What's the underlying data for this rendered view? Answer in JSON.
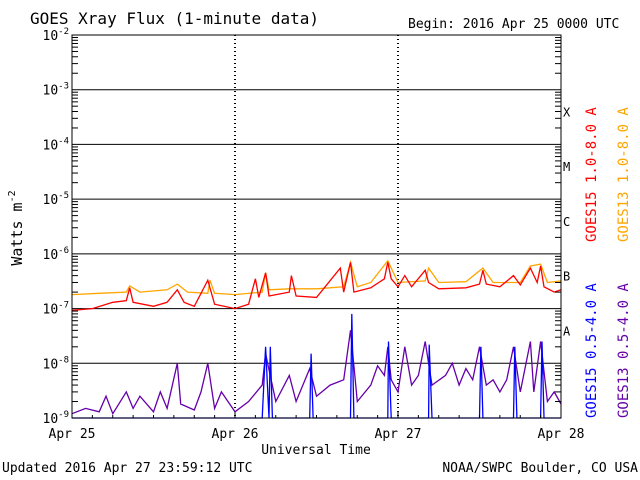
{
  "chart_data": {
    "type": "line",
    "title": "GOES Xray Flux (1-minute data)",
    "begin_label": "Begin:  2016 Apr 25 0000 UTC",
    "xlabel": "Universal Time",
    "ylabel": "Watts m",
    "ylabel_sup": "-2",
    "y_scale": "log",
    "ylim": [
      1e-09,
      0.01
    ],
    "x_unit": "hours since 2016 Apr 25 0000 UTC",
    "xlim": [
      0,
      72
    ],
    "x_ticks": [
      {
        "x": 0,
        "label": "Apr 25"
      },
      {
        "x": 24,
        "label": "Apr 26"
      },
      {
        "x": 48,
        "label": "Apr 27"
      },
      {
        "x": 72,
        "label": "Apr 28"
      }
    ],
    "y_ticks": [
      {
        "exp": "-2",
        "value": 0.01
      },
      {
        "exp": "-3",
        "value": 0.001
      },
      {
        "exp": "-4",
        "value": 0.0001
      },
      {
        "exp": "-5",
        "value": 1e-05
      },
      {
        "exp": "-6",
        "value": 1e-06
      },
      {
        "exp": "-7",
        "value": 1e-07
      },
      {
        "exp": "-8",
        "value": 1e-08
      },
      {
        "exp": "-9",
        "value": 1e-09
      }
    ],
    "flare_classes": [
      {
        "label": "X",
        "value": 0.0001
      },
      {
        "label": "M",
        "value": 1e-05
      },
      {
        "label": "C",
        "value": 1e-06
      },
      {
        "label": "B",
        "value": 1e-07
      },
      {
        "label": "A",
        "value": 1e-08
      }
    ],
    "grid": "horizontal at each decade from 1e-3 to 1e-8, dashed vertical at day boundaries",
    "legend_position": "right, vertical",
    "series": [
      {
        "name": "GOES15 1.0-8.0 A",
        "color": "#ff0000",
        "points": [
          [
            0,
            9.3e-08
          ],
          [
            3,
            1e-07
          ],
          [
            6,
            1.3e-07
          ],
          [
            8,
            1.4e-07
          ],
          [
            8.5,
            2.4e-07
          ],
          [
            9,
            1.3e-07
          ],
          [
            12,
            1.1e-07
          ],
          [
            14,
            1.3e-07
          ],
          [
            15.5,
            2.2e-07
          ],
          [
            16.5,
            1.3e-07
          ],
          [
            18,
            1.1e-07
          ],
          [
            20,
            3.3e-07
          ],
          [
            21,
            1.2e-07
          ],
          [
            24,
            1e-07
          ],
          [
            26,
            1.2e-07
          ],
          [
            27,
            3.5e-07
          ],
          [
            27.5,
            1.6e-07
          ],
          [
            28.5,
            4.5e-07
          ],
          [
            29,
            1.7e-07
          ],
          [
            32,
            2e-07
          ],
          [
            32.3,
            4e-07
          ],
          [
            33,
            1.7e-07
          ],
          [
            36,
            1.6e-07
          ],
          [
            39.5,
            5.5e-07
          ],
          [
            40,
            2e-07
          ],
          [
            41,
            7e-07
          ],
          [
            41.5,
            2e-07
          ],
          [
            44,
            2.4e-07
          ],
          [
            46,
            3.5e-07
          ],
          [
            46.5,
            7e-07
          ],
          [
            47,
            3.5e-07
          ],
          [
            48,
            2.5e-07
          ],
          [
            49,
            4e-07
          ],
          [
            50,
            2.5e-07
          ],
          [
            52,
            5e-07
          ],
          [
            52.5,
            3e-07
          ],
          [
            54,
            2.3e-07
          ],
          [
            58,
            2.4e-07
          ],
          [
            60,
            2.8e-07
          ],
          [
            60.5,
            5e-07
          ],
          [
            61,
            2.8e-07
          ],
          [
            63,
            2.5e-07
          ],
          [
            65,
            4e-07
          ],
          [
            66,
            2.7e-07
          ],
          [
            67.5,
            5.5e-07
          ],
          [
            68.5,
            3e-07
          ],
          [
            69,
            6e-07
          ],
          [
            69.5,
            2.5e-07
          ],
          [
            71,
            2e-07
          ],
          [
            72,
            2.2e-07
          ]
        ]
      },
      {
        "name": "GOES13 1.0-8.0 A",
        "color": "#ffa500",
        "points": [
          [
            0,
            1.8e-07
          ],
          [
            4,
            1.9e-07
          ],
          [
            8,
            2e-07
          ],
          [
            8.5,
            2.6e-07
          ],
          [
            10,
            2e-07
          ],
          [
            14,
            2.2e-07
          ],
          [
            15.5,
            2.8e-07
          ],
          [
            17,
            2e-07
          ],
          [
            20,
            1.9e-07
          ],
          [
            20.3,
            3.3e-07
          ],
          [
            21,
            1.9e-07
          ],
          [
            24,
            1.8e-07
          ],
          [
            28,
            2e-07
          ],
          [
            28.5,
            4.5e-07
          ],
          [
            29,
            2.2e-07
          ],
          [
            32,
            2.3e-07
          ],
          [
            36,
            2.3e-07
          ],
          [
            40,
            2.5e-07
          ],
          [
            41,
            7e-07
          ],
          [
            42,
            2.5e-07
          ],
          [
            44,
            3e-07
          ],
          [
            46.5,
            7.5e-07
          ],
          [
            48,
            3e-07
          ],
          [
            52,
            3.2e-07
          ],
          [
            52.5,
            5.5e-07
          ],
          [
            54,
            3e-07
          ],
          [
            58,
            3.1e-07
          ],
          [
            60.5,
            5.5e-07
          ],
          [
            62,
            3e-07
          ],
          [
            66,
            3e-07
          ],
          [
            67.5,
            6e-07
          ],
          [
            69,
            6.5e-07
          ],
          [
            70,
            3e-07
          ],
          [
            72,
            3.2e-07
          ]
        ]
      },
      {
        "name": "GOES15 0.5-4.0 A",
        "color": "#0000ff",
        "points": [
          [
            0,
            1e-09
          ],
          [
            28,
            1e-09
          ],
          [
            28.5,
            2e-08
          ],
          [
            29,
            1e-09
          ],
          [
            29.2,
            2e-08
          ],
          [
            29.5,
            1e-09
          ],
          [
            35,
            1e-09
          ],
          [
            35.2,
            1.5e-08
          ],
          [
            35.5,
            1e-09
          ],
          [
            41,
            1e-09
          ],
          [
            41.2,
            8e-08
          ],
          [
            41.5,
            1e-09
          ],
          [
            46.5,
            1e-09
          ],
          [
            46.6,
            2.5e-08
          ],
          [
            47,
            1e-09
          ],
          [
            52.5,
            1e-09
          ],
          [
            52.6,
            2.2e-08
          ],
          [
            53,
            1e-09
          ],
          [
            60,
            1e-09
          ],
          [
            60.2,
            2e-08
          ],
          [
            60.5,
            1e-09
          ],
          [
            65,
            1e-09
          ],
          [
            65.2,
            2e-08
          ],
          [
            65.5,
            1e-09
          ],
          [
            69,
            1e-09
          ],
          [
            69.2,
            2.5e-08
          ],
          [
            69.5,
            1e-09
          ],
          [
            72,
            1e-09
          ]
        ]
      },
      {
        "name": "GOES13 0.5-4.0 A",
        "color": "#6600aa",
        "points": [
          [
            0,
            1.2e-09
          ],
          [
            2,
            1.5e-09
          ],
          [
            4,
            1.3e-09
          ],
          [
            5,
            2.5e-09
          ],
          [
            6,
            1.2e-09
          ],
          [
            8,
            3e-09
          ],
          [
            9,
            1.5e-09
          ],
          [
            10,
            2.5e-09
          ],
          [
            12,
            1.3e-09
          ],
          [
            13,
            3e-09
          ],
          [
            14,
            1.5e-09
          ],
          [
            15.5,
            1e-08
          ],
          [
            16,
            1.8e-09
          ],
          [
            18,
            1.4e-09
          ],
          [
            19,
            3e-09
          ],
          [
            20,
            1e-08
          ],
          [
            21,
            1.5e-09
          ],
          [
            22,
            3e-09
          ],
          [
            24,
            1.3e-09
          ],
          [
            26,
            2e-09
          ],
          [
            28,
            4e-09
          ],
          [
            28.5,
            1.5e-08
          ],
          [
            30,
            2e-09
          ],
          [
            32,
            6e-09
          ],
          [
            33,
            2e-09
          ],
          [
            35,
            8e-09
          ],
          [
            36,
            2.5e-09
          ],
          [
            38,
            4e-09
          ],
          [
            40,
            5e-09
          ],
          [
            41,
            4e-08
          ],
          [
            42,
            2e-09
          ],
          [
            44,
            4e-09
          ],
          [
            45,
            9e-09
          ],
          [
            46,
            6e-09
          ],
          [
            46.5,
            2e-08
          ],
          [
            47,
            5e-09
          ],
          [
            48,
            3e-09
          ],
          [
            49,
            2e-08
          ],
          [
            50,
            4e-09
          ],
          [
            51,
            6e-09
          ],
          [
            52,
            2.5e-08
          ],
          [
            53,
            4e-09
          ],
          [
            55,
            6e-09
          ],
          [
            56,
            1e-08
          ],
          [
            57,
            4e-09
          ],
          [
            58,
            8e-09
          ],
          [
            59,
            5e-09
          ],
          [
            60,
            2e-08
          ],
          [
            61,
            4e-09
          ],
          [
            62,
            5e-09
          ],
          [
            63,
            3e-09
          ],
          [
            64,
            5e-09
          ],
          [
            65,
            2e-08
          ],
          [
            66,
            3e-09
          ],
          [
            67.5,
            2.5e-08
          ],
          [
            68,
            3e-09
          ],
          [
            69,
            2.5e-08
          ],
          [
            70,
            2e-09
          ],
          [
            71,
            3e-09
          ],
          [
            72,
            1.8e-09
          ]
        ]
      }
    ]
  },
  "footer": {
    "updated": "Updated 2016 Apr 27 23:59:12 UTC",
    "credit": "NOAA/SWPC Boulder, CO USA"
  }
}
